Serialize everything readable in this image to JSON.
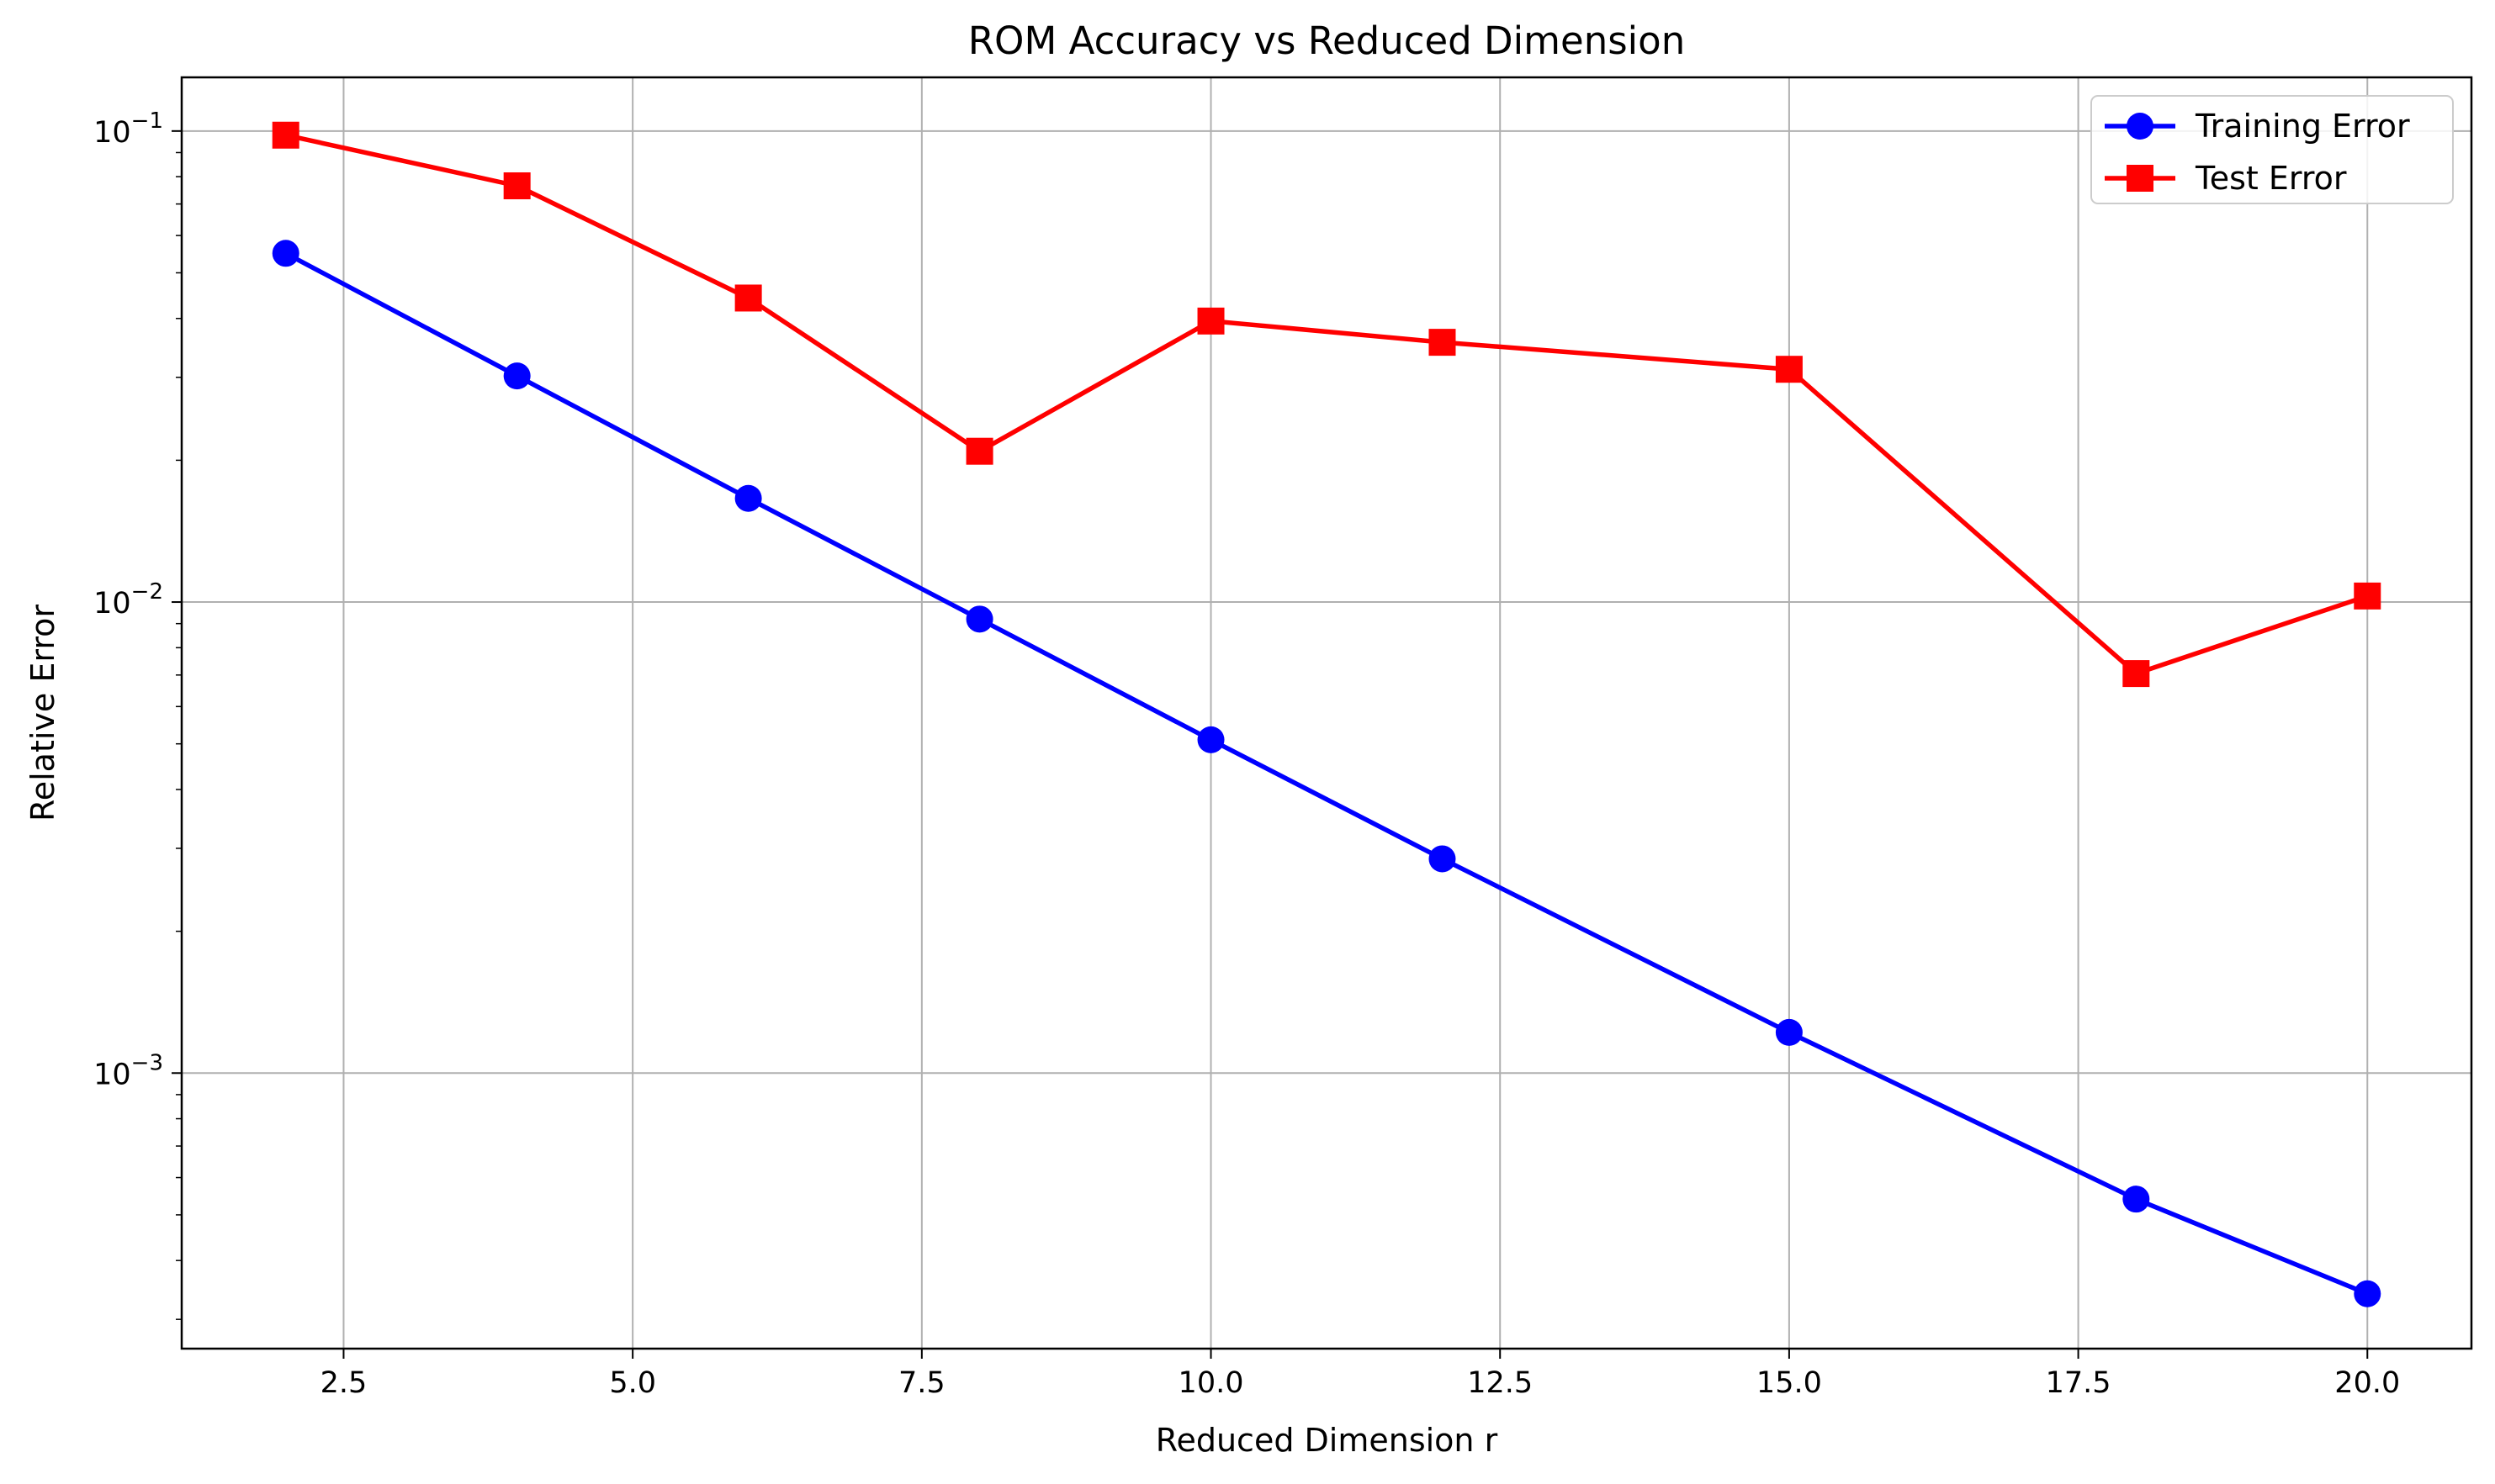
{
  "chart_data": {
    "type": "line",
    "title": "ROM Accuracy vs Reduced Dimension",
    "xlabel": "Reduced Dimension r",
    "ylabel": "Relative Error",
    "y_scale": "log",
    "xlim": [
      1.1,
      20.9
    ],
    "ylim": [
      0.00026,
      0.13
    ],
    "x_ticks": [
      2.5,
      5.0,
      7.5,
      10.0,
      12.5,
      15.0,
      17.5,
      20.0
    ],
    "x_tick_labels": [
      "2.5",
      "5.0",
      "7.5",
      "10.0",
      "12.5",
      "15.0",
      "17.5",
      "20.0"
    ],
    "y_ticks": [
      0.1,
      0.01,
      0.001
    ],
    "y_tick_labels": [
      {
        "base": "10",
        "exp": "−1"
      },
      {
        "base": "10",
        "exp": "−2"
      },
      {
        "base": "10",
        "exp": "−3"
      }
    ],
    "grid": true,
    "legend_position": "top-right",
    "x": [
      2,
      4,
      6,
      8,
      10,
      12,
      15,
      18,
      20
    ],
    "series": [
      {
        "name": "Training Error",
        "color": "#0000ff",
        "marker": "circle",
        "values": [
          0.055,
          0.0302,
          0.0166,
          0.0092,
          0.0051,
          0.00285,
          0.00122,
          0.00054,
          0.00034
        ]
      },
      {
        "name": "Test Error",
        "color": "#ff0000",
        "marker": "square",
        "values": [
          0.098,
          0.0765,
          0.0442,
          0.0209,
          0.0395,
          0.0356,
          0.0312,
          0.00705,
          0.0103
        ]
      }
    ]
  }
}
